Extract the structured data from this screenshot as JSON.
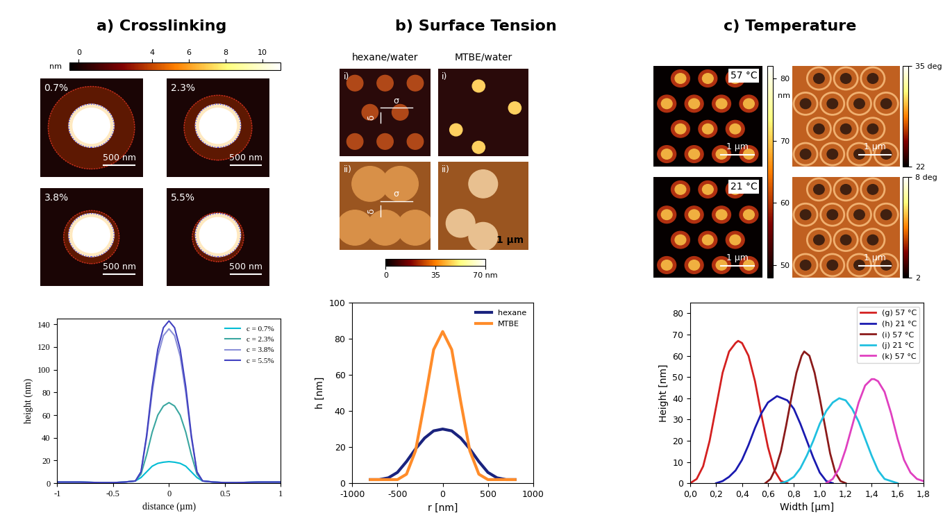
{
  "chart_data": [
    {
      "type": "line",
      "x_label": "distance (µm)",
      "y_label": "height (nm)",
      "x": [
        -1,
        -0.8,
        -0.6,
        -0.5,
        -0.4,
        -0.3,
        -0.25,
        -0.2,
        -0.15,
        -0.1,
        -0.05,
        0,
        0.05,
        0.1,
        0.15,
        0.2,
        0.25,
        0.3,
        0.4,
        0.5,
        0.6,
        0.8,
        1
      ],
      "series": [
        {
          "name": "c = 0.7%",
          "color": "#00bcd4",
          "values": [
            1,
            1,
            0.5,
            0.5,
            1,
            2,
            5,
            10,
            15,
            17.5,
            18.5,
            19,
            18.5,
            17.5,
            15,
            10,
            5,
            2,
            1,
            0.5,
            0.5,
            1,
            1
          ]
        },
        {
          "name": "c = 2.3%",
          "color": "#3aa6a0",
          "values": [
            1,
            1,
            0.5,
            0.5,
            1,
            2,
            8,
            25,
            45,
            60,
            68,
            71,
            68,
            60,
            45,
            25,
            8,
            2,
            1,
            0.5,
            0.5,
            1,
            1
          ]
        },
        {
          "name": "c = 3.8%",
          "color": "#8a8fd8",
          "values": [
            1,
            1,
            0.5,
            0.5,
            1,
            2,
            10,
            40,
            80,
            112,
            130,
            136,
            130,
            112,
            80,
            40,
            10,
            2,
            1,
            0.5,
            0.5,
            1,
            1
          ]
        },
        {
          "name": "c = 5.5%",
          "color": "#4040c0",
          "values": [
            1,
            1,
            0.5,
            0.5,
            1,
            2,
            10,
            42,
            85,
            118,
            137,
            143,
            137,
            118,
            85,
            42,
            10,
            2,
            1,
            0.5,
            0.5,
            1,
            1
          ]
        }
      ],
      "xlim": [
        -1,
        1
      ],
      "xticks": [
        -1,
        -0.5,
        0,
        0.5,
        1
      ],
      "ylim": [
        0,
        145
      ],
      "yticks": [
        0,
        20,
        40,
        60,
        80,
        100,
        120,
        140
      ],
      "legend": "upper right",
      "grid": false
    },
    {
      "type": "line",
      "x_label": "r [nm]",
      "y_label": "h [nm]",
      "x": [
        -800,
        -700,
        -600,
        -500,
        -400,
        -300,
        -200,
        -100,
        0,
        100,
        200,
        300,
        400,
        500,
        600,
        700,
        800
      ],
      "series": [
        {
          "name": "hexane",
          "color": "#1a237e",
          "values": [
            2,
            2,
            3,
            6,
            12,
            19,
            25,
            29,
            30,
            29,
            25,
            19,
            12,
            6,
            3,
            2,
            2
          ]
        },
        {
          "name": "MTBE",
          "color": "#ff8c2a",
          "values": [
            2,
            2,
            2,
            2,
            5,
            18,
            45,
            74,
            84,
            74,
            45,
            18,
            5,
            2,
            2,
            2,
            2
          ]
        }
      ],
      "xlim": [
        -1000,
        1000
      ],
      "xticks": [
        -1000,
        -500,
        0,
        500,
        1000
      ],
      "ylim": [
        0,
        100
      ],
      "yticks": [
        0,
        20,
        40,
        60,
        80,
        100
      ],
      "legend": "upper right",
      "grid": false
    },
    {
      "type": "line",
      "x_label": "Width [µm]",
      "y_label": "Height [nm]",
      "series": [
        {
          "name": "(g) 57 °C",
          "color": "#d42020",
          "x": [
            0.0,
            0.05,
            0.1,
            0.15,
            0.2,
            0.25,
            0.3,
            0.35,
            0.37,
            0.4,
            0.45,
            0.5,
            0.55,
            0.6,
            0.65,
            0.7,
            0.75
          ],
          "values": [
            0,
            2,
            8,
            20,
            36,
            52,
            62,
            66,
            67,
            66,
            60,
            48,
            32,
            17,
            6,
            1,
            0
          ]
        },
        {
          "name": "(h) 21 °C",
          "color": "#1a1ab0",
          "x": [
            0.2,
            0.25,
            0.3,
            0.35,
            0.4,
            0.45,
            0.5,
            0.55,
            0.6,
            0.67,
            0.75,
            0.8,
            0.85,
            0.9,
            0.95,
            1.0,
            1.05,
            1.1
          ],
          "values": [
            0,
            1,
            3,
            6,
            11,
            18,
            26,
            33,
            38,
            41,
            39,
            35,
            28,
            20,
            12,
            5,
            1,
            0
          ]
        },
        {
          "name": "(i) 57 °C",
          "color": "#8b1a1a",
          "x": [
            0.58,
            0.62,
            0.66,
            0.7,
            0.74,
            0.78,
            0.82,
            0.86,
            0.88,
            0.92,
            0.96,
            1.0,
            1.04,
            1.08,
            1.12,
            1.16,
            1.2
          ],
          "values": [
            0,
            2,
            7,
            15,
            27,
            40,
            52,
            60,
            62,
            60,
            52,
            40,
            27,
            14,
            5,
            1,
            0
          ]
        },
        {
          "name": "(j) 21 °C",
          "color": "#20c0e0",
          "x": [
            0.7,
            0.75,
            0.8,
            0.85,
            0.9,
            0.95,
            1.0,
            1.05,
            1.1,
            1.15,
            1.2,
            1.25,
            1.3,
            1.35,
            1.4,
            1.45,
            1.5,
            1.55,
            1.6
          ],
          "values": [
            0,
            1,
            3,
            7,
            13,
            20,
            28,
            34,
            38,
            40,
            39,
            35,
            29,
            21,
            13,
            6,
            2,
            1,
            0
          ]
        },
        {
          "name": "(k) 57 °C",
          "color": "#e040c0",
          "x": [
            1.05,
            1.1,
            1.15,
            1.2,
            1.25,
            1.3,
            1.35,
            1.4,
            1.42,
            1.45,
            1.5,
            1.55,
            1.6,
            1.65,
            1.7,
            1.75,
            1.8
          ],
          "values": [
            0,
            2,
            7,
            16,
            27,
            38,
            46,
            49,
            49,
            48,
            43,
            33,
            21,
            11,
            5,
            2,
            1
          ]
        }
      ],
      "xlim": [
        0,
        1.8
      ],
      "xticks": [
        {
          "value": 0.0,
          "label": "0,0"
        },
        {
          "value": 0.2,
          "label": "0,2"
        },
        {
          "value": 0.4,
          "label": "0,4"
        },
        {
          "value": 0.6,
          "label": "0,6"
        },
        {
          "value": 0.8,
          "label": "0,8"
        },
        {
          "value": 1.0,
          "label": "1,0"
        },
        {
          "value": 1.2,
          "label": "1,2"
        },
        {
          "value": 1.4,
          "label": "1,4"
        },
        {
          "value": 1.6,
          "label": "1,6"
        },
        {
          "value": 1.8,
          "label": "1,8"
        }
      ],
      "ylim": [
        0,
        85
      ],
      "yticks": [
        0,
        10,
        20,
        30,
        40,
        50,
        60,
        70,
        80
      ],
      "legend": "upper right",
      "grid": false
    }
  ],
  "image_panels": [
    {
      "title": "a) Crosslinking",
      "colorbars": [
        {
          "label": "nm",
          "range": [
            -0.5,
            11
          ],
          "ticks": [
            0,
            4,
            6,
            8,
            10
          ]
        }
      ],
      "images": [
        {
          "label": "0.7%",
          "scale_bar": "500 nm"
        },
        {
          "label": "2.3%",
          "scale_bar": "500 nm"
        },
        {
          "label": "3.8%",
          "scale_bar": "500 nm"
        },
        {
          "label": "5.5%",
          "scale_bar": "500 nm"
        }
      ]
    },
    {
      "title": "b) Surface Tension",
      "columns": [
        "hexane/water",
        "MTBE/water"
      ],
      "colorbars": [
        {
          "range": [
            0,
            70
          ],
          "ticks": [
            0,
            35,
            {
              "value": 70,
              "label": "70 nm"
            }
          ]
        }
      ],
      "images": [
        {
          "label": "i)",
          "marks": [
            "σ",
            "δ"
          ]
        },
        {
          "label": "i)"
        },
        {
          "label": "ii)",
          "marks": [
            "σ",
            "δ"
          ]
        },
        {
          "label": "ii)",
          "scale_bar": "1 µm"
        }
      ]
    },
    {
      "title": "c) Temperature",
      "colorbars": [
        {
          "label": "nm",
          "range": [
            48,
            82
          ],
          "ticks": [
            50,
            60,
            70,
            80
          ]
        },
        {
          "range": [
            22,
            35
          ],
          "ticks": [
            22,
            {
              "value": 35,
              "label": "35 deg"
            }
          ]
        },
        {
          "range": [
            2,
            8
          ],
          "ticks": [
            2,
            {
              "value": 8,
              "label": "8 deg"
            }
          ]
        }
      ],
      "images": [
        {
          "label": "57 °C",
          "scale_bar": "1 µm"
        },
        {
          "scale_bar": "1 µm"
        },
        {
          "label": "21 °C",
          "scale_bar": "1 µm"
        },
        {
          "scale_bar": "1 µm"
        }
      ]
    }
  ]
}
